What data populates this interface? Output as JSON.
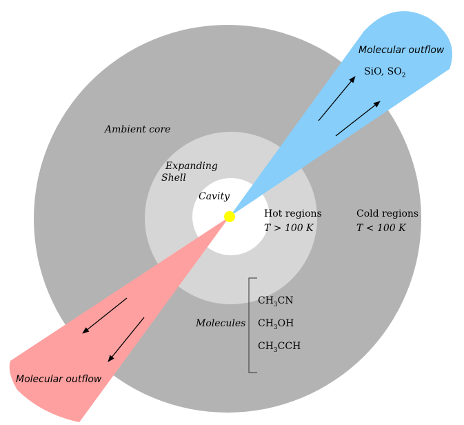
{
  "colors": {
    "ambient_core": "#b3b3b3",
    "expanding_shell": "#d6d6d6",
    "cavity": "#ffffff",
    "protostar": "#ffff00",
    "blue_outflow": "#87cefa",
    "red_outflow": "#ffa0a0"
  },
  "labels": {
    "ambient_core": "Ambient core",
    "expanding_shell_line1": "Expanding",
    "expanding_shell_line2": "Shell",
    "cavity": "Cavity",
    "hot_regions": "Hot regions",
    "hot_regions_temp": "T > 100 K",
    "cold_regions": "Cold regions",
    "cold_regions_temp": "T < 100 K",
    "molecules": "Molecules",
    "blue_outflow": "Molecular outflow",
    "blue_outflow_species": "SiO, SO",
    "blue_outflow_species_sub": "2",
    "red_outflow": "Molecular outflow"
  },
  "molecules": [
    {
      "base": "CH",
      "sub": "3",
      "rest": "CN"
    },
    {
      "base": "CH",
      "sub": "3",
      "rest": "OH"
    },
    {
      "base": "CH",
      "sub": "3",
      "rest": "CCH"
    }
  ]
}
